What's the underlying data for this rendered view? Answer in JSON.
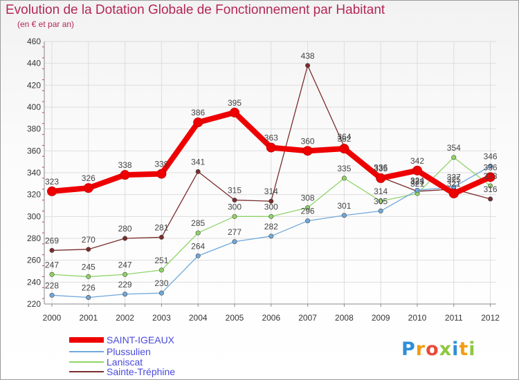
{
  "title": "Evolution de la Dotation Globale de Fonctionnement par Habitant",
  "subtitle": "(en € et par an)",
  "logo": {
    "text": "Proxiti",
    "letters": [
      "P",
      "r",
      "o",
      "x",
      "i",
      "t",
      "i"
    ],
    "colors": [
      "#2f8fd6",
      "#f39c12",
      "#e74c3c",
      "#8ec63f",
      "#2f8fd6",
      "#f39c12",
      "#8ec63f"
    ]
  },
  "chart_data": {
    "type": "line",
    "title": "Evolution de la Dotation Globale de Fonctionnement par Habitant",
    "subtitle": "(en € et par an)",
    "xlabel": "",
    "ylabel": "",
    "x": [
      "2000",
      "2001",
      "2002",
      "2003",
      "2004",
      "2005",
      "2006",
      "2007",
      "2008",
      "2009",
      "2010",
      "2011",
      "2012"
    ],
    "ylim": [
      220,
      460
    ],
    "yticks": [
      220,
      240,
      260,
      280,
      300,
      320,
      340,
      360,
      380,
      400,
      420,
      440,
      460
    ],
    "grid": true,
    "legend_position": "bottom-left",
    "series": [
      {
        "name": "SAINT-IGEAUX",
        "color": "#ee0000",
        "values": [
          323,
          326,
          338,
          339,
          386,
          395,
          363,
          360,
          362,
          335,
          342,
          321,
          336
        ],
        "labels": [
          "323",
          "326",
          "338",
          "339",
          "386",
          "395",
          "363",
          "360",
          "362",
          "335",
          "342",
          "321",
          "336"
        ]
      },
      {
        "name": "Plussulien",
        "color": "#6fa8dc",
        "values": [
          228,
          226,
          229,
          230,
          264,
          277,
          282,
          296,
          301,
          305,
          324,
          327,
          346
        ],
        "labels": [
          "228",
          "226",
          "229",
          "230",
          "264",
          "277",
          "282",
          "296",
          "301",
          "305",
          "324",
          "327",
          "346"
        ]
      },
      {
        "name": "Laniscat",
        "color": "#8fd467",
        "values": [
          247,
          245,
          247,
          251,
          285,
          300,
          300,
          308,
          335,
          314,
          321,
          354,
          328
        ],
        "labels": [
          "247",
          "245",
          "247",
          "251",
          "285",
          "300",
          "300",
          "308",
          "335",
          "314",
          "321",
          "354",
          "328"
        ]
      },
      {
        "name": "Sainte-Tréphine",
        "color": "#7a2b2b",
        "values": [
          269,
          270,
          280,
          281,
          341,
          315,
          314,
          438,
          364,
          336,
          323,
          325,
          316
        ],
        "labels": [
          "269",
          "270",
          "280",
          "281",
          "341",
          "315",
          "314",
          "438",
          "364",
          "336",
          "323",
          "325",
          "316"
        ]
      }
    ]
  }
}
